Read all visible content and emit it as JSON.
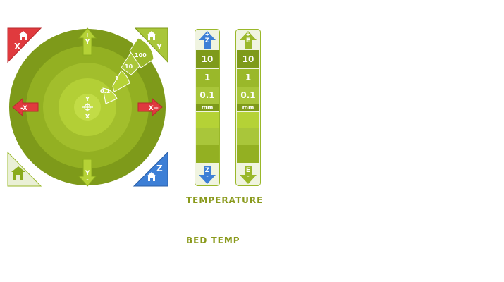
{
  "jog": {
    "x_minus_label": "-X",
    "x_plus_label": "X+",
    "y_plus_label": "+\nY",
    "y_minus_label": "Y\n-",
    "step_labels": [
      "0.1",
      "1",
      "10",
      "100"
    ],
    "center_top": "Y",
    "center_bottom": "X",
    "home_x_label": "X",
    "home_y_label": "Y",
    "home_z_label": "Z"
  },
  "z_column": {
    "up_label": "+\nZ",
    "down_label": "Z\n-",
    "steps": [
      "10",
      "1",
      "0.1"
    ],
    "unit": "mm"
  },
  "e_column": {
    "up_label": "+\nE",
    "down_label": "E\n-",
    "steps": [
      "10",
      "1",
      "0.1"
    ],
    "unit": "mm"
  },
  "sections": {
    "temperature": "TEMPERATURE",
    "bed_temp": "BED TEMP"
  },
  "colors": {
    "dark_green": "#7e9a1a",
    "mid_green": "#9ab82a",
    "light_green": "#b5d236",
    "red": "#e03a3e",
    "blue": "#3d7fd6"
  }
}
